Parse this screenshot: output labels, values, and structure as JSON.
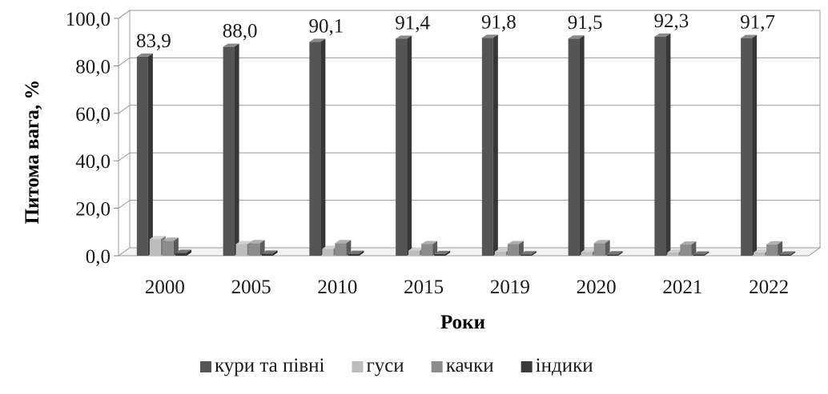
{
  "chart_data": {
    "type": "bar",
    "title": "",
    "xlabel": "Роки",
    "ylabel": "Питома вага, %",
    "categories": [
      "2000",
      "2005",
      "2010",
      "2015",
      "2019",
      "2020",
      "2021",
      "2022"
    ],
    "ylim": [
      0,
      100
    ],
    "yticks": [
      "0,0",
      "20,0",
      "40,0",
      "60,0",
      "80,0",
      "100,0"
    ],
    "grid": true,
    "legend_position": "bottom",
    "series": [
      {
        "name": "кури та півні",
        "color": "#555555",
        "values": [
          83.9,
          88.0,
          90.1,
          91.4,
          91.8,
          91.5,
          92.3,
          91.7
        ]
      },
      {
        "name": "гуси",
        "color": "#bdbdbd",
        "values": [
          7.0,
          4.9,
          2.9,
          2.2,
          1.7,
          1.5,
          1.4,
          1.4
        ]
      },
      {
        "name": "качки",
        "color": "#8c8c8c",
        "values": [
          6.3,
          5.3,
          5.3,
          4.9,
          4.9,
          5.3,
          4.7,
          4.8
        ]
      },
      {
        "name": "індики",
        "color": "#3a3a3a",
        "values": [
          1.2,
          0.9,
          0.8,
          0.7,
          0.6,
          0.6,
          0.5,
          0.5
        ]
      }
    ],
    "data_labels": {
      "series": "кури та півні",
      "values": [
        "83,9",
        "88,0",
        "90,1",
        "91,4",
        "91,8",
        "91,5",
        "92,3",
        "91,7"
      ]
    }
  }
}
